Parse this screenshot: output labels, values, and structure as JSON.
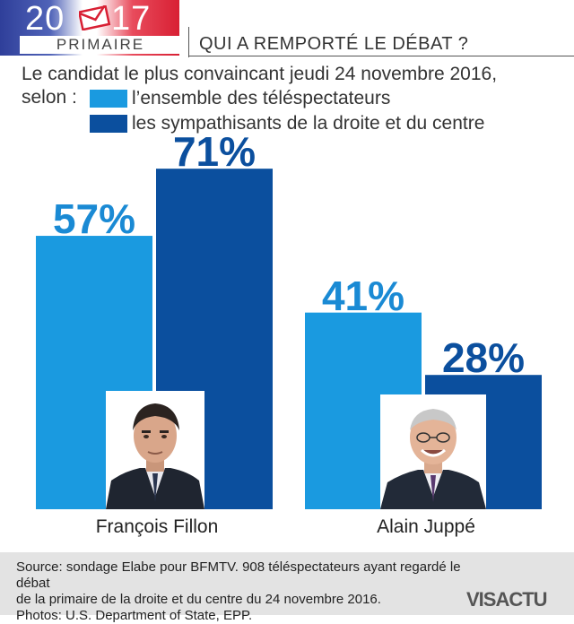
{
  "header": {
    "year_left": "20",
    "year_right": "17",
    "primaire": "PRIMAIRE",
    "headline": "QUI A REMPORTÉ LE DÉBAT ?"
  },
  "subtitle_line1": "Le candidat le plus convaincant jeudi 24 novembre 2016,",
  "subtitle_line2": "selon :",
  "chart_data": {
    "type": "bar",
    "title": "QUI A REMPORTÉ LE DÉBAT ?",
    "categories": [
      "François Fillon",
      "Alain Juppé"
    ],
    "series": [
      {
        "name": "l’ensemble des téléspectateurs",
        "values": [
          57,
          41
        ],
        "color": "#1a9ae0"
      },
      {
        "name": "les sympathisants de la droite et du centre",
        "values": [
          71,
          28
        ],
        "color": "#0b4f9e"
      }
    ],
    "value_labels": [
      [
        "57%",
        "41%"
      ],
      [
        "71%",
        "28%"
      ]
    ],
    "ylim": [
      0,
      100
    ],
    "legend": "top-left",
    "grid": false
  },
  "candidates": [
    {
      "first": "François ",
      "last": "Fillon"
    },
    {
      "first": "Alain ",
      "last": "Juppé"
    }
  ],
  "footer": {
    "line1": "Source: sondage Elabe pour BFMTV. 908 téléspectateurs ayant regardé le débat",
    "line2": "de la primaire de la droite et du centre du 24 novembre 2016.",
    "line3": "Photos: U.S. Department of State, EPP.",
    "logo": "VISACTU"
  },
  "colors": {
    "light_blue": "#1a9ae0",
    "dark_blue": "#0b4f9e",
    "label_blue": "#1a8ad4",
    "footer_bg": "#e3e3e3"
  }
}
